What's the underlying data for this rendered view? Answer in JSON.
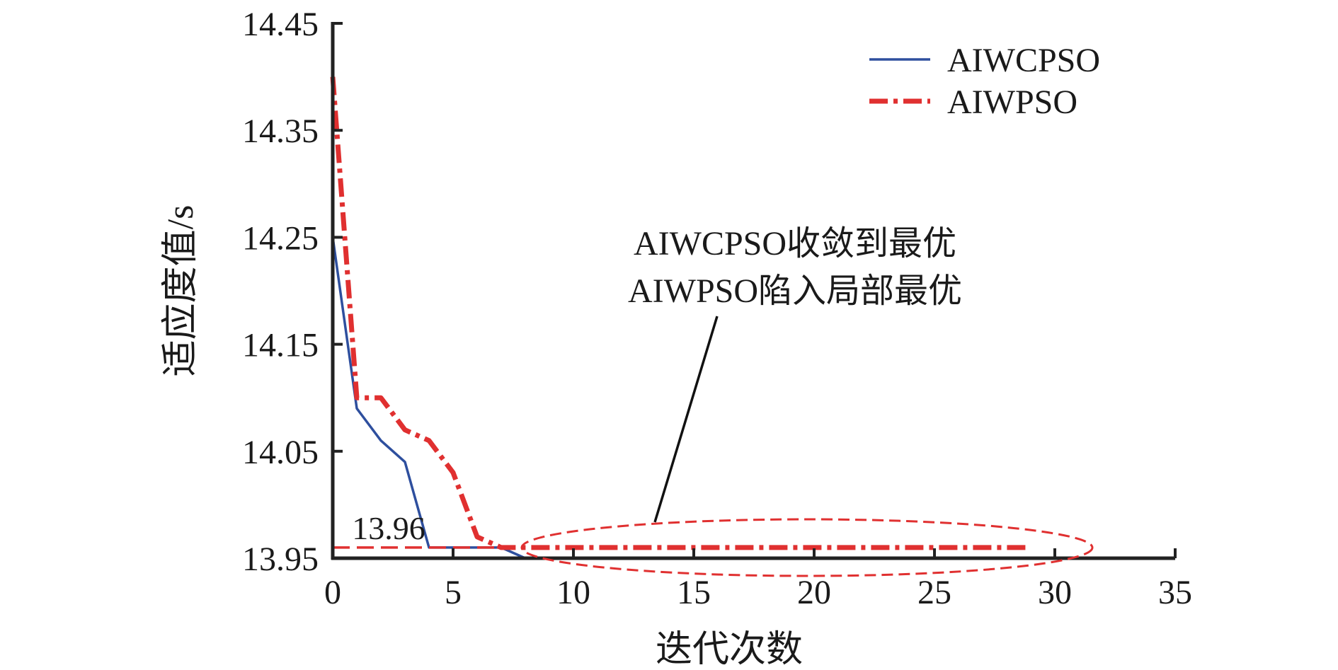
{
  "chart_data": {
    "type": "line",
    "title": "",
    "xlabel": "迭代次数",
    "ylabel": "适应度值/s",
    "xlim": [
      0,
      35
    ],
    "ylim": [
      13.95,
      14.45
    ],
    "xticks": [
      0,
      5,
      10,
      15,
      20,
      25,
      30,
      35
    ],
    "yticks": [
      13.95,
      14.05,
      14.15,
      14.25,
      14.35,
      14.45
    ],
    "xtick_labels": [
      "0",
      "5",
      "10",
      "15",
      "20",
      "25",
      "30",
      "35"
    ],
    "ytick_labels": [
      "13.95",
      "14.05",
      "14.15",
      "14.25",
      "14.35",
      "14.45"
    ],
    "grid": false,
    "legend_position": "top-right",
    "series": [
      {
        "name": "AIWCPSO",
        "color": "#2e4f9e",
        "style": "solid",
        "x": [
          0,
          1,
          2,
          3,
          4,
          5,
          6,
          7,
          8,
          9,
          10,
          11,
          12,
          13,
          14,
          15,
          16,
          17,
          18,
          19,
          20,
          21,
          22,
          23,
          24,
          25,
          26,
          27,
          28,
          29
        ],
        "y": [
          14.25,
          14.09,
          14.06,
          14.04,
          13.96,
          13.96,
          13.96,
          13.96,
          13.95,
          13.95,
          13.95,
          13.95,
          13.95,
          13.95,
          13.95,
          13.95,
          13.95,
          13.95,
          13.95,
          13.95,
          13.95,
          13.95,
          13.95,
          13.95,
          13.95,
          13.95,
          13.95,
          13.95,
          13.95,
          13.95
        ]
      },
      {
        "name": "AIWPSO",
        "color": "#e03030",
        "style": "dashdot",
        "x": [
          0,
          1,
          2,
          3,
          4,
          5,
          6,
          7,
          8,
          9,
          10,
          11,
          12,
          13,
          14,
          15,
          16,
          17,
          18,
          19,
          20,
          21,
          22,
          23,
          24,
          25,
          26,
          27,
          28,
          29
        ],
        "y": [
          14.4,
          14.1,
          14.1,
          14.07,
          14.06,
          14.03,
          13.97,
          13.96,
          13.96,
          13.96,
          13.96,
          13.96,
          13.96,
          13.96,
          13.96,
          13.96,
          13.96,
          13.96,
          13.96,
          13.96,
          13.96,
          13.96,
          13.96,
          13.96,
          13.96,
          13.96,
          13.96,
          13.96,
          13.96,
          13.96
        ]
      }
    ],
    "reference_line": {
      "y": 13.96,
      "color": "#e03030",
      "style": "dashed",
      "label": "13.96"
    },
    "annotation": {
      "lines": [
        "AIWCPSO收敛到最优",
        "AIWPSO陷入局部最优"
      ],
      "ellipse_color": "#e03030"
    }
  }
}
